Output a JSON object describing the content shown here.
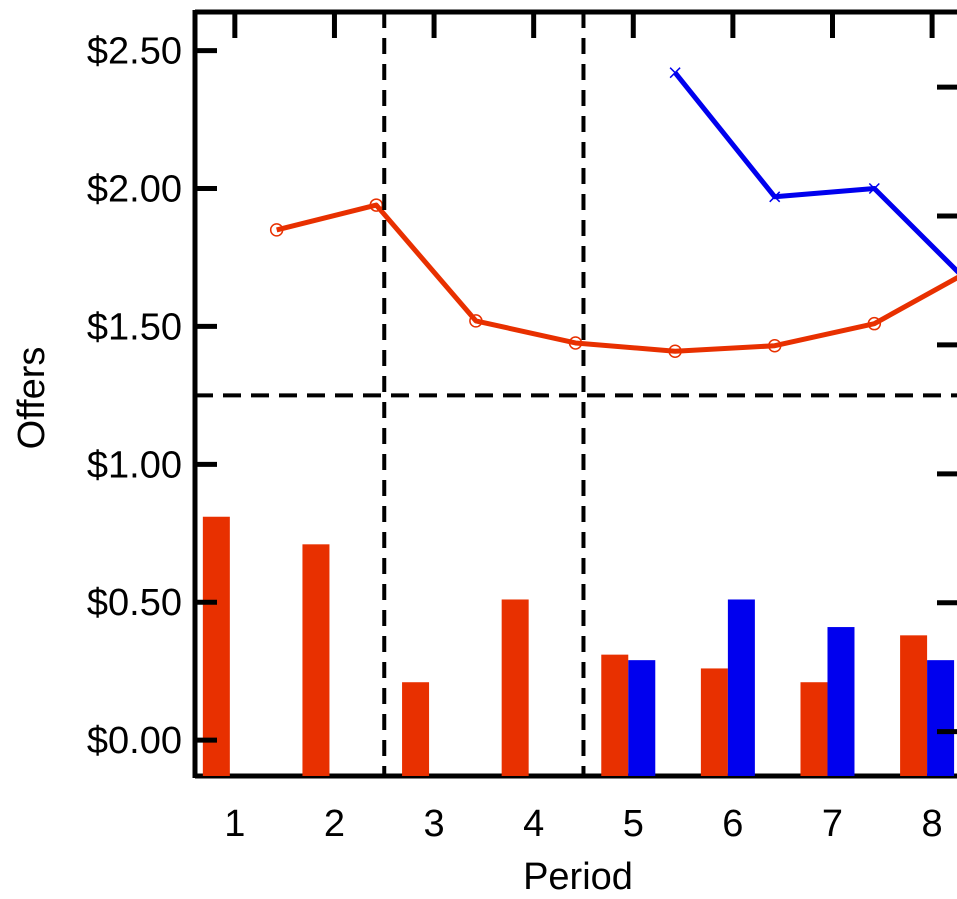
{
  "chart_data": {
    "type": "bar",
    "xlabel": "Period",
    "ylabel": "Offers",
    "ylim": [
      -0.13,
      2.64
    ],
    "xlim": [
      0.6,
      8.25
    ],
    "x_ticks": [
      "1",
      "2",
      "3",
      "4",
      "5",
      "6",
      "7",
      "8"
    ],
    "y_ticks": [
      {
        "value": 0.0,
        "label": "$0.00"
      },
      {
        "value": 0.5,
        "label": "$0.50"
      },
      {
        "value": 1.0,
        "label": "$1.00"
      },
      {
        "value": 1.5,
        "label": "$1.50"
      },
      {
        "value": 2.0,
        "label": "$2.00"
      },
      {
        "value": 2.5,
        "label": "$2.50"
      }
    ],
    "grid": false,
    "legend": "none",
    "bar_series": [
      {
        "color": "#e83000",
        "x": [
          1,
          2,
          3,
          4,
          5,
          6,
          7,
          8
        ],
        "values": [
          0.81,
          0.71,
          0.21,
          0.51,
          0.31,
          0.26,
          0.21,
          0.38
        ]
      },
      {
        "color": "#0000ee",
        "x": [
          5,
          6,
          7,
          8
        ],
        "values": [
          0.29,
          0.51,
          0.41,
          0.29
        ]
      }
    ],
    "line_series": [
      {
        "color": "#e83000",
        "marker": "circle",
        "x": [
          1.5,
          2.5,
          3.5,
          4.5,
          5.5,
          6.5,
          7.5,
          8.5
        ],
        "values": [
          1.85,
          1.94,
          1.52,
          1.44,
          1.41,
          1.43,
          1.51,
          1.71
        ]
      },
      {
        "color": "#0000ee",
        "marker": "x",
        "x": [
          5.5,
          6.5,
          7.5,
          8.5
        ],
        "values": [
          2.42,
          1.97,
          2.0,
          1.64
        ]
      }
    ],
    "reference_lines": {
      "vertical_x": [
        2.5,
        4.5
      ],
      "horizontal_y": [
        1.25
      ],
      "style": "dashed"
    }
  }
}
